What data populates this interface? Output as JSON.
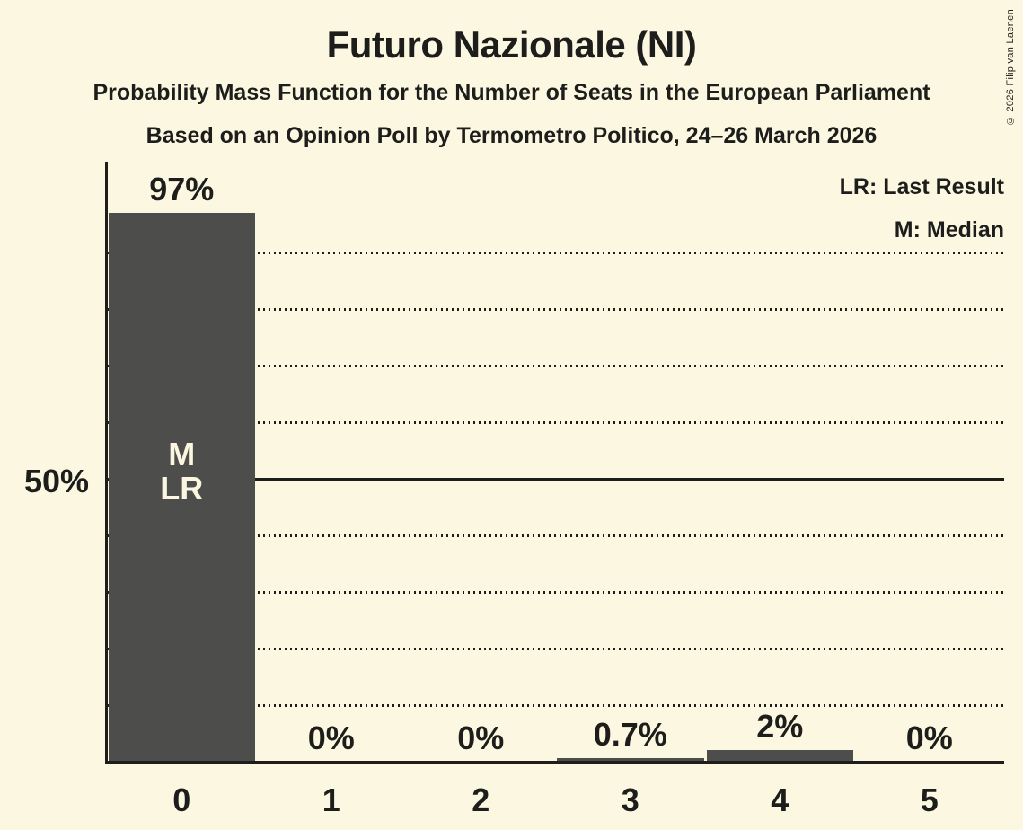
{
  "title": "Futuro Nazionale (NI)",
  "subtitle": "Probability Mass Function for the Number of Seats in the European Parliament",
  "source_line": "Based on an Opinion Poll by Termometro Politico, 24–26 March 2026",
  "copyright": "© 2026 Filip van Laenen",
  "legend": {
    "last_result": "LR: Last Result",
    "median": "M: Median"
  },
  "colors": {
    "background": "#FBF7E0",
    "bar": "#4D4D4B",
    "text": "#1D1D1B",
    "bar_inner_label": "#FAF6DF"
  },
  "chart_data": {
    "type": "bar",
    "title": "Futuro Nazionale (NI)",
    "categories": [
      "0",
      "1",
      "2",
      "3",
      "4",
      "5"
    ],
    "values": [
      97,
      0,
      0,
      0.7,
      2,
      0
    ],
    "value_labels": [
      "97%",
      "0%",
      "0%",
      "0.7%",
      "2%",
      "0%"
    ],
    "bar_inner_labels": {
      "0": [
        "M",
        "LR"
      ]
    },
    "ylim": [
      0,
      100
    ],
    "y_reference": {
      "value": 50,
      "label": "50%",
      "style": "solid"
    },
    "gridlines": {
      "values_pct": [
        10,
        20,
        30,
        40,
        60,
        70,
        80,
        90
      ],
      "style": "dotted"
    },
    "legend_position": "top-right",
    "median_seats": "0",
    "last_result_seats": "0"
  }
}
